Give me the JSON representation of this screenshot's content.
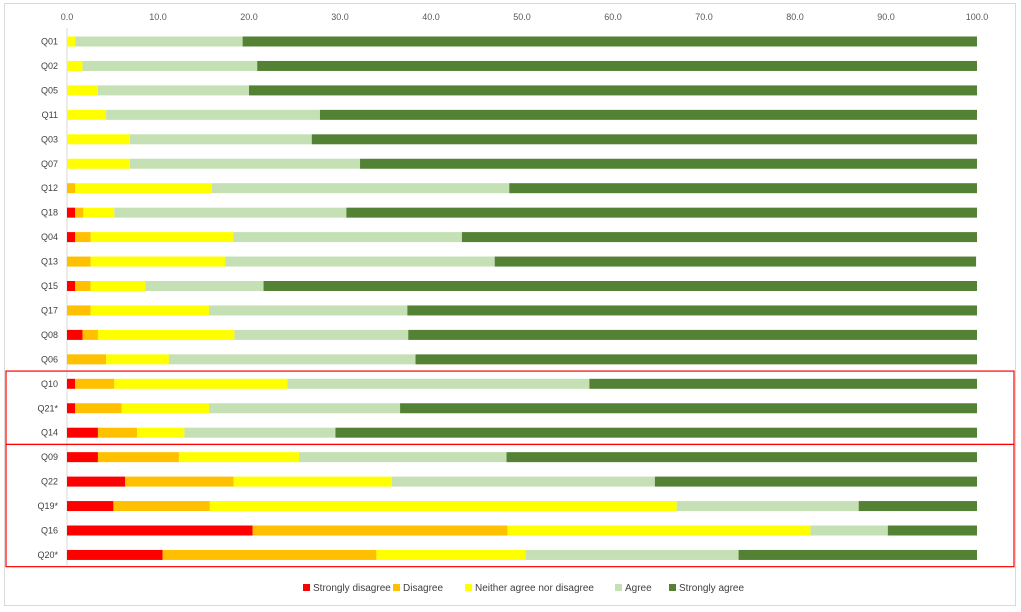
{
  "chart_data": {
    "type": "bar",
    "orientation": "horizontal",
    "stacked": true,
    "title": "",
    "xlabel": "",
    "ylabel": "",
    "xlim": [
      0,
      100
    ],
    "x_tick_labels": [
      "0.0",
      "10.0",
      "20.0",
      "30.0",
      "40.0",
      "50.0",
      "60.0",
      "70.0",
      "80.0",
      "90.0",
      "100.0"
    ],
    "x_ticks": [
      0,
      10,
      20,
      30,
      40,
      50,
      60,
      70,
      80,
      90,
      100
    ],
    "x_axis_position": "top",
    "grid": false,
    "legend_position": "bottom",
    "categories": [
      "Q01",
      "Q02",
      "Q05",
      "Q11",
      "Q03",
      "Q07",
      "Q12",
      "Q18",
      "Q04",
      "Q13",
      "Q15",
      "Q17",
      "Q08",
      "Q06",
      "Q10",
      "Q21*",
      "Q14",
      "Q09",
      "Q22",
      "Q19*",
      "Q16",
      "Q20*"
    ],
    "series": [
      {
        "name": "Strongly disagree",
        "color": "#ff0000",
        "values": [
          0,
          0,
          0,
          0,
          0,
          0,
          0,
          0.9,
          0.9,
          0,
          0.9,
          0,
          1.7,
          0,
          0.9,
          0.9,
          3.4,
          3.4,
          6.4,
          5.1,
          20.4,
          10.5
        ]
      },
      {
        "name": "Disagree",
        "color": "#ffc000",
        "values": [
          0,
          0,
          0,
          0,
          0,
          0,
          0.9,
          0.9,
          1.7,
          2.6,
          1.7,
          2.6,
          1.7,
          4.3,
          4.3,
          5.1,
          4.3,
          8.9,
          11.9,
          10.6,
          28.0,
          23.5
        ]
      },
      {
        "name": "Neither agree nor disagree",
        "color": "#ffff00",
        "values": [
          0.9,
          1.7,
          3.4,
          4.3,
          6.9,
          6.9,
          15.0,
          3.4,
          15.7,
          14.8,
          6.0,
          13.0,
          15.0,
          6.9,
          19.0,
          9.6,
          5.2,
          13.2,
          17.4,
          51.3,
          33.3,
          16.4
        ]
      },
      {
        "name": "Agree",
        "color": "#c5e0b4",
        "values": [
          18.4,
          19.2,
          16.6,
          23.5,
          20.0,
          25.3,
          32.7,
          25.5,
          25.1,
          29.6,
          13.0,
          21.8,
          19.1,
          27.1,
          33.2,
          21.0,
          16.6,
          22.8,
          28.9,
          20.0,
          8.5,
          23.4
        ]
      },
      {
        "name": "Strongly agree",
        "color": "#548235",
        "values": [
          80.7,
          79.1,
          80.0,
          72.2,
          73.1,
          67.8,
          51.4,
          69.3,
          56.6,
          52.9,
          78.4,
          62.6,
          62.5,
          61.7,
          42.6,
          63.4,
          70.5,
          51.7,
          35.4,
          13.0,
          9.8,
          26.2
        ]
      }
    ],
    "highlight_groups": [
      {
        "categories": [
          "Q10",
          "Q21*",
          "Q14"
        ],
        "color": "#ff0000"
      },
      {
        "categories": [
          "Q09",
          "Q22",
          "Q19*",
          "Q16",
          "Q20*"
        ],
        "color": "#ff0000"
      }
    ]
  }
}
